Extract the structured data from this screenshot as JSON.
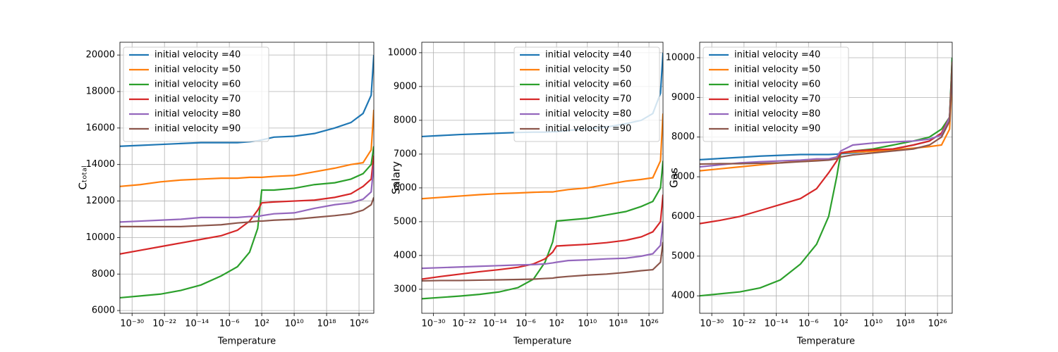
{
  "chart_data": [
    {
      "type": "line",
      "xlabel": "Temperature",
      "ylabel": "Cₜₒₜₐₗ",
      "xscale": "log",
      "grid": true,
      "legend": "upper left",
      "xlim": [
        1e-33,
        4.5e+29
      ],
      "ylim": [
        5850,
        20700
      ],
      "xticks": [
        {
          "value": 1e-30,
          "label": "10⁻³⁰"
        },
        {
          "value": 1e-22,
          "label": "10⁻²²"
        },
        {
          "value": 1e-14,
          "label": "10⁻¹⁴"
        },
        {
          "value": 1e-06,
          "label": "10⁻⁶"
        },
        {
          "value": 100,
          "label": "10²"
        },
        {
          "value": 10000000000.0,
          "label": "10¹⁰"
        },
        {
          "value": 1e+18,
          "label": "10¹⁸"
        },
        {
          "value": 1e+26,
          "label": "10²⁶"
        }
      ],
      "yticks": [
        6000,
        8000,
        10000,
        12000,
        14000,
        16000,
        18000,
        20000
      ],
      "x": [
        1e-33,
        1e-28,
        1e-23,
        1e-18,
        1e-13,
        1e-08,
        0.0001,
        0.1,
        10,
        100,
        100000.0,
        10000000000.0,
        1000000000000000.0,
        1e+20,
        1e+24,
        1e+27,
        1e+29,
        4.5e+29
      ],
      "series": [
        {
          "name": "initial velocity =40",
          "color": "#1f77b4",
          "values": [
            15000,
            15050,
            15100,
            15150,
            15200,
            15200,
            15200,
            15250,
            15300,
            15350,
            15500,
            15550,
            15700,
            16000,
            16300,
            16800,
            17800,
            20000
          ]
        },
        {
          "name": "initial velocity =50",
          "color": "#ff7f0e",
          "values": [
            12800,
            12900,
            13050,
            13150,
            13200,
            13250,
            13250,
            13300,
            13300,
            13300,
            13350,
            13400,
            13600,
            13800,
            14000,
            14100,
            14800,
            17000
          ]
        },
        {
          "name": "initial velocity =60",
          "color": "#2ca02c",
          "values": [
            6700,
            6800,
            6900,
            7100,
            7400,
            7900,
            8400,
            9200,
            10500,
            12600,
            12600,
            12700,
            12900,
            13000,
            13200,
            13500,
            14000,
            15000
          ]
        },
        {
          "name": "initial velocity =70",
          "color": "#d62728",
          "values": [
            9100,
            9300,
            9500,
            9700,
            9900,
            10100,
            10400,
            10900,
            11500,
            11900,
            11950,
            12000,
            12050,
            12200,
            12400,
            12800,
            13200,
            14500
          ]
        },
        {
          "name": "initial velocity =80",
          "color": "#9467bd",
          "values": [
            10850,
            10900,
            10950,
            11000,
            11100,
            11100,
            11100,
            11150,
            11150,
            11200,
            11300,
            11350,
            11600,
            11800,
            11900,
            12100,
            12500,
            14000
          ]
        },
        {
          "name": "initial velocity =90",
          "color": "#8c564b",
          "values": [
            10600,
            10600,
            10600,
            10600,
            10650,
            10700,
            10800,
            10850,
            10900,
            10900,
            10950,
            11000,
            11100,
            11200,
            11300,
            11500,
            11800,
            12200
          ]
        }
      ]
    },
    {
      "type": "line",
      "xlabel": "Temperature",
      "ylabel": "Salary",
      "xscale": "log",
      "grid": true,
      "legend": "upper right",
      "xlim": [
        1e-33,
        4.5e+29
      ],
      "ylim": [
        2290,
        10310
      ],
      "xticks": [
        {
          "value": 1e-30,
          "label": "10⁻³⁰"
        },
        {
          "value": 1e-22,
          "label": "10⁻²²"
        },
        {
          "value": 1e-14,
          "label": "10⁻¹⁴"
        },
        {
          "value": 1e-06,
          "label": "10⁻⁶"
        },
        {
          "value": 100,
          "label": "10²"
        },
        {
          "value": 10000000000.0,
          "label": "10¹⁰"
        },
        {
          "value": 1e+18,
          "label": "10¹⁸"
        },
        {
          "value": 1e+26,
          "label": "10²⁶"
        }
      ],
      "yticks": [
        3000,
        4000,
        5000,
        6000,
        7000,
        8000,
        9000,
        10000
      ],
      "x": [
        1e-33,
        1e-28,
        1e-23,
        1e-18,
        1e-13,
        1e-08,
        0.0001,
        0.1,
        10,
        100,
        100000.0,
        10000000000.0,
        1000000000000000.0,
        1e+20,
        1e+24,
        1e+27,
        1e+29,
        4.5e+29
      ],
      "series": [
        {
          "name": "initial velocity =40",
          "color": "#1f77b4",
          "values": [
            7520,
            7550,
            7580,
            7600,
            7620,
            7640,
            7650,
            7650,
            7660,
            7660,
            7700,
            7750,
            7800,
            7900,
            8000,
            8200,
            8800,
            10000
          ]
        },
        {
          "name": "initial velocity =50",
          "color": "#ff7f0e",
          "values": [
            5680,
            5720,
            5760,
            5800,
            5830,
            5850,
            5870,
            5880,
            5880,
            5900,
            5950,
            6000,
            6100,
            6200,
            6250,
            6300,
            6800,
            8200
          ]
        },
        {
          "name": "initial velocity =60",
          "color": "#2ca02c",
          "values": [
            2720,
            2760,
            2800,
            2850,
            2920,
            3050,
            3300,
            3800,
            4400,
            5020,
            5050,
            5100,
            5200,
            5300,
            5450,
            5600,
            6000,
            6800
          ]
        },
        {
          "name": "initial velocity =70",
          "color": "#d62728",
          "values": [
            3300,
            3380,
            3450,
            3520,
            3580,
            3650,
            3750,
            3900,
            4100,
            4280,
            4300,
            4330,
            4380,
            4450,
            4550,
            4700,
            5000,
            5800
          ]
        },
        {
          "name": "initial velocity =80",
          "color": "#9467bd",
          "values": [
            3620,
            3640,
            3660,
            3680,
            3700,
            3720,
            3730,
            3750,
            3780,
            3800,
            3850,
            3870,
            3900,
            3920,
            3980,
            4050,
            4300,
            5000
          ]
        },
        {
          "name": "initial velocity =90",
          "color": "#8c564b",
          "values": [
            3250,
            3260,
            3260,
            3270,
            3280,
            3290,
            3300,
            3320,
            3330,
            3350,
            3380,
            3420,
            3450,
            3500,
            3550,
            3580,
            3800,
            4400
          ]
        }
      ]
    },
    {
      "type": "line",
      "xlabel": "Temperature",
      "ylabel": "Gas",
      "xscale": "log",
      "grid": true,
      "legend": "upper left",
      "xlim": [
        1e-33,
        4.5e+29
      ],
      "ylim": [
        3560,
        10390
      ],
      "xticks": [
        {
          "value": 1e-30,
          "label": "10⁻³⁰"
        },
        {
          "value": 1e-22,
          "label": "10⁻²²"
        },
        {
          "value": 1e-14,
          "label": "10⁻¹⁴"
        },
        {
          "value": 1e-06,
          "label": "10⁻⁶"
        },
        {
          "value": 100,
          "label": "10²"
        },
        {
          "value": 10000000000.0,
          "label": "10¹⁰"
        },
        {
          "value": 1e+18,
          "label": "10¹⁸"
        },
        {
          "value": 1e+26,
          "label": "10²⁶"
        }
      ],
      "yticks": [
        4000,
        5000,
        6000,
        7000,
        8000,
        9000,
        10000
      ],
      "x": [
        1e-33,
        1e-28,
        1e-23,
        1e-18,
        1e-13,
        1e-08,
        0.0001,
        0.1,
        10,
        100,
        100000.0,
        10000000000.0,
        1000000000000000.0,
        1e+20,
        1e+24,
        1e+27,
        1e+29,
        4.5e+29
      ],
      "series": [
        {
          "name": "initial velocity =40",
          "color": "#1f77b4",
          "values": [
            7430,
            7460,
            7490,
            7520,
            7540,
            7560,
            7560,
            7560,
            7570,
            7580,
            7600,
            7650,
            7700,
            7800,
            7900,
            8100,
            8500,
            10000
          ]
        },
        {
          "name": "initial velocity =50",
          "color": "#ff7f0e",
          "values": [
            7150,
            7200,
            7250,
            7300,
            7350,
            7400,
            7430,
            7450,
            7460,
            7600,
            7620,
            7640,
            7680,
            7720,
            7760,
            7800,
            8200,
            9500
          ]
        },
        {
          "name": "initial velocity =60",
          "color": "#2ca02c",
          "values": [
            4000,
            4050,
            4100,
            4200,
            4400,
            4800,
            5300,
            6000,
            7000,
            7600,
            7650,
            7700,
            7800,
            7900,
            8000,
            8200,
            8500,
            10000
          ]
        },
        {
          "name": "initial velocity =70",
          "color": "#d62728",
          "values": [
            5820,
            5900,
            6000,
            6150,
            6300,
            6450,
            6700,
            7100,
            7400,
            7600,
            7650,
            7680,
            7700,
            7800,
            7900,
            8100,
            8500,
            9800
          ]
        },
        {
          "name": "initial velocity =80",
          "color": "#9467bd",
          "values": [
            7250,
            7300,
            7350,
            7380,
            7400,
            7420,
            7450,
            7450,
            7500,
            7650,
            7800,
            7850,
            7880,
            7900,
            7950,
            8050,
            8500,
            9600
          ]
        },
        {
          "name": "initial velocity =90",
          "color": "#8c564b",
          "values": [
            7320,
            7330,
            7330,
            7340,
            7350,
            7380,
            7400,
            7420,
            7450,
            7500,
            7550,
            7600,
            7650,
            7700,
            7800,
            8000,
            8400,
            9900
          ]
        }
      ]
    }
  ]
}
